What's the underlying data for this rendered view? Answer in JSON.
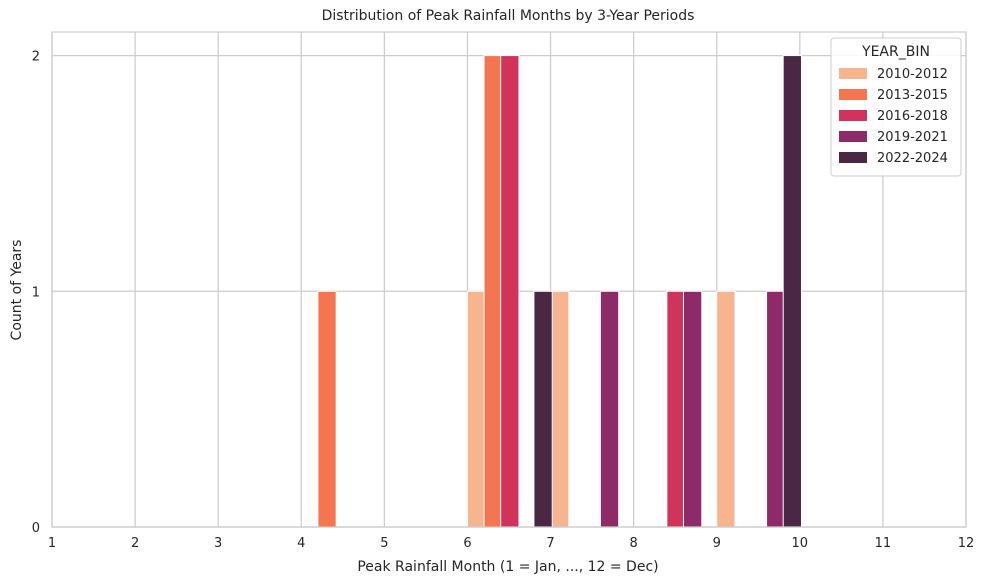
{
  "chart_data": {
    "type": "bar",
    "title": "Distribution of Peak Rainfall Months by 3-Year Periods",
    "xlabel": "Peak Rainfall Month (1 = Jan, ..., 12 = Dec)",
    "ylabel": "Count of Years",
    "xlim": [
      1,
      12
    ],
    "ylim": [
      0,
      2.1
    ],
    "xticks": [
      "1",
      "2",
      "3",
      "4",
      "5",
      "6",
      "7",
      "8",
      "9",
      "10",
      "11",
      "12"
    ],
    "yticks": [
      "0",
      "1",
      "2"
    ],
    "grid": true,
    "legend": {
      "title": "YEAR_BIN",
      "position": "top-right"
    },
    "bin_width": 0.22,
    "series": [
      {
        "name": "2010-2012",
        "color": "#f6b48f",
        "bars": [
          {
            "x0": 6.0,
            "count": 1
          },
          {
            "x0": 7.0,
            "count": 1
          },
          {
            "x0": 9.0,
            "count": 1
          }
        ]
      },
      {
        "name": "2013-2015",
        "color": "#f37651",
        "bars": [
          {
            "x0": 4.2,
            "count": 1
          },
          {
            "x0": 6.2,
            "count": 2
          }
        ]
      },
      {
        "name": "2016-2018",
        "color": "#d1335b",
        "bars": [
          {
            "x0": 6.4,
            "count": 2
          },
          {
            "x0": 8.4,
            "count": 1
          }
        ]
      },
      {
        "name": "2019-2021",
        "color": "#8d2a68",
        "bars": [
          {
            "x0": 7.6,
            "count": 1
          },
          {
            "x0": 8.6,
            "count": 1
          },
          {
            "x0": 9.6,
            "count": 1
          }
        ]
      },
      {
        "name": "2022-2024",
        "color": "#4a2745",
        "bars": [
          {
            "x0": 6.8,
            "count": 1
          },
          {
            "x0": 9.8,
            "count": 2
          }
        ]
      }
    ]
  }
}
